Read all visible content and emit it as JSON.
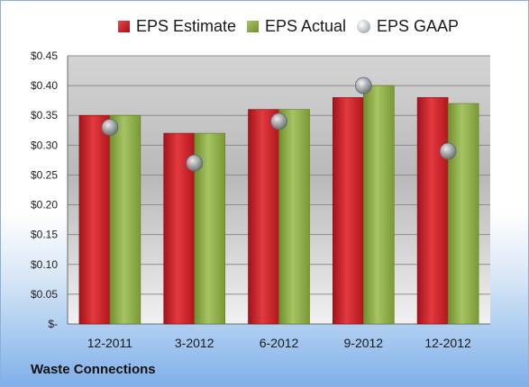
{
  "footer": {
    "company": "Waste Connections"
  },
  "colors": {
    "estimate": "#c81e24",
    "actual": "#8aab44",
    "gaap": "#b9bfc7"
  },
  "chart_data": {
    "type": "bar",
    "title": "",
    "xlabel": "",
    "ylabel": "",
    "categories": [
      "12-2011",
      "3-2012",
      "6-2012",
      "9-2012",
      "12-2012"
    ],
    "series": [
      {
        "name": "EPS Estimate",
        "kind": "bar",
        "values": [
          0.35,
          0.32,
          0.36,
          0.38,
          0.38
        ]
      },
      {
        "name": "EPS Actual",
        "kind": "bar",
        "values": [
          0.35,
          0.32,
          0.36,
          0.4,
          0.37
        ]
      },
      {
        "name": "EPS GAAP",
        "kind": "marker",
        "values": [
          0.33,
          0.27,
          0.34,
          0.4,
          0.29
        ]
      }
    ],
    "ylim": [
      0,
      0.45
    ],
    "yticks": [
      0,
      0.05,
      0.1,
      0.15,
      0.2,
      0.25,
      0.3,
      0.35,
      0.4,
      0.45
    ],
    "ytick_labels": [
      "$-",
      "$0.05",
      "$0.10",
      "$0.15",
      "$0.20",
      "$0.25",
      "$0.30",
      "$0.35",
      "$0.40",
      "$0.45"
    ],
    "grid": true,
    "legend_position": "top"
  }
}
